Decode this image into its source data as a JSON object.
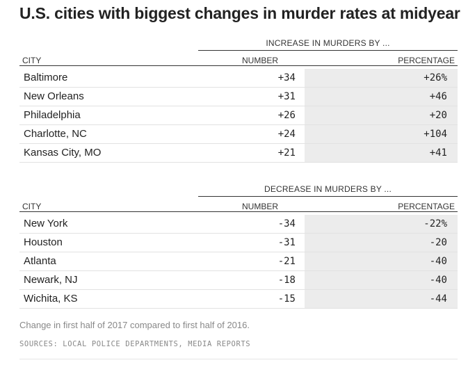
{
  "title": "U.S. cities with biggest changes in murder rates at midyear",
  "increase": {
    "group_label": "INCREASE IN MURDERS BY ...",
    "col_city": "CITY",
    "col_number": "NUMBER",
    "col_percentage": "PERCENTAGE",
    "rows": [
      {
        "city": "Baltimore",
        "number": "+34",
        "percentage": "+26%"
      },
      {
        "city": "New Orleans",
        "number": "+31",
        "percentage": "+46"
      },
      {
        "city": "Philadelphia",
        "number": "+26",
        "percentage": "+20"
      },
      {
        "city": "Charlotte, NC",
        "number": "+24",
        "percentage": "+104"
      },
      {
        "city": "Kansas City, MO",
        "number": "+21",
        "percentage": "+41"
      }
    ]
  },
  "decrease": {
    "group_label": "DECREASE IN MURDERS BY ...",
    "col_city": "CITY",
    "col_number": "NUMBER",
    "col_percentage": "PERCENTAGE",
    "rows": [
      {
        "city": "New York",
        "number": "-34",
        "percentage": "-22%"
      },
      {
        "city": "Houston",
        "number": "-31",
        "percentage": "-20"
      },
      {
        "city": "Atlanta",
        "number": "-21",
        "percentage": "-40"
      },
      {
        "city": "Newark, NJ",
        "number": "-18",
        "percentage": "-40"
      },
      {
        "city": "Wichita, KS",
        "number": "-15",
        "percentage": "-44"
      }
    ]
  },
  "note": "Change in first half of 2017 compared to first half of 2016.",
  "source": "SOURCES: LOCAL POLICE DEPARTMENTS, MEDIA REPORTS"
}
